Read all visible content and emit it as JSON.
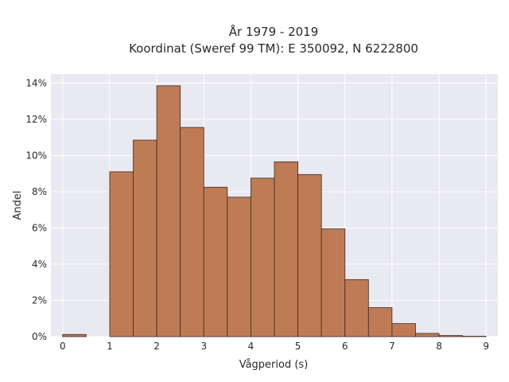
{
  "chart_data": {
    "type": "bar",
    "title_lines": [
      "År 1979 - 2019",
      "Koordinat (Sweref 99 TM): E 350092, N 6222800"
    ],
    "xlabel": "Vågperiod (s)",
    "ylabel": "Andel",
    "xlim": [
      -0.25,
      9.25
    ],
    "ylim": [
      0,
      14.5
    ],
    "x_ticks": [
      0,
      1,
      2,
      3,
      4,
      5,
      6,
      7,
      8,
      9
    ],
    "y_ticks": [
      0,
      2,
      4,
      6,
      8,
      10,
      12,
      14
    ],
    "y_tick_labels": [
      "0%",
      "2%",
      "4%",
      "6%",
      "8%",
      "10%",
      "12%",
      "14%"
    ],
    "bin_width": 0.5,
    "bins": [
      {
        "x0": 0.0,
        "x1": 0.5,
        "value": 0.12
      },
      {
        "x0": 0.5,
        "x1": 1.0,
        "value": 0.0
      },
      {
        "x0": 1.0,
        "x1": 1.5,
        "value": 9.1
      },
      {
        "x0": 1.5,
        "x1": 2.0,
        "value": 10.85
      },
      {
        "x0": 2.0,
        "x1": 2.5,
        "value": 13.85
      },
      {
        "x0": 2.5,
        "x1": 3.0,
        "value": 11.55
      },
      {
        "x0": 3.0,
        "x1": 3.5,
        "value": 8.25
      },
      {
        "x0": 3.5,
        "x1": 4.0,
        "value": 7.7
      },
      {
        "x0": 4.0,
        "x1": 4.5,
        "value": 8.75
      },
      {
        "x0": 4.5,
        "x1": 5.0,
        "value": 9.65
      },
      {
        "x0": 5.0,
        "x1": 5.5,
        "value": 8.95
      },
      {
        "x0": 5.5,
        "x1": 6.0,
        "value": 5.95
      },
      {
        "x0": 6.0,
        "x1": 6.5,
        "value": 3.15
      },
      {
        "x0": 6.5,
        "x1": 7.0,
        "value": 1.6
      },
      {
        "x0": 7.0,
        "x1": 7.5,
        "value": 0.72
      },
      {
        "x0": 7.5,
        "x1": 8.0,
        "value": 0.18
      },
      {
        "x0": 8.0,
        "x1": 8.5,
        "value": 0.06
      },
      {
        "x0": 8.5,
        "x1": 9.0,
        "value": 0.02
      }
    ],
    "grid": true,
    "colors": {
      "bar_fill": "#BE7B55",
      "bar_edge": "#3d2a1f",
      "plot_background": "#e9e9f1",
      "grid": "#ffffff"
    }
  }
}
